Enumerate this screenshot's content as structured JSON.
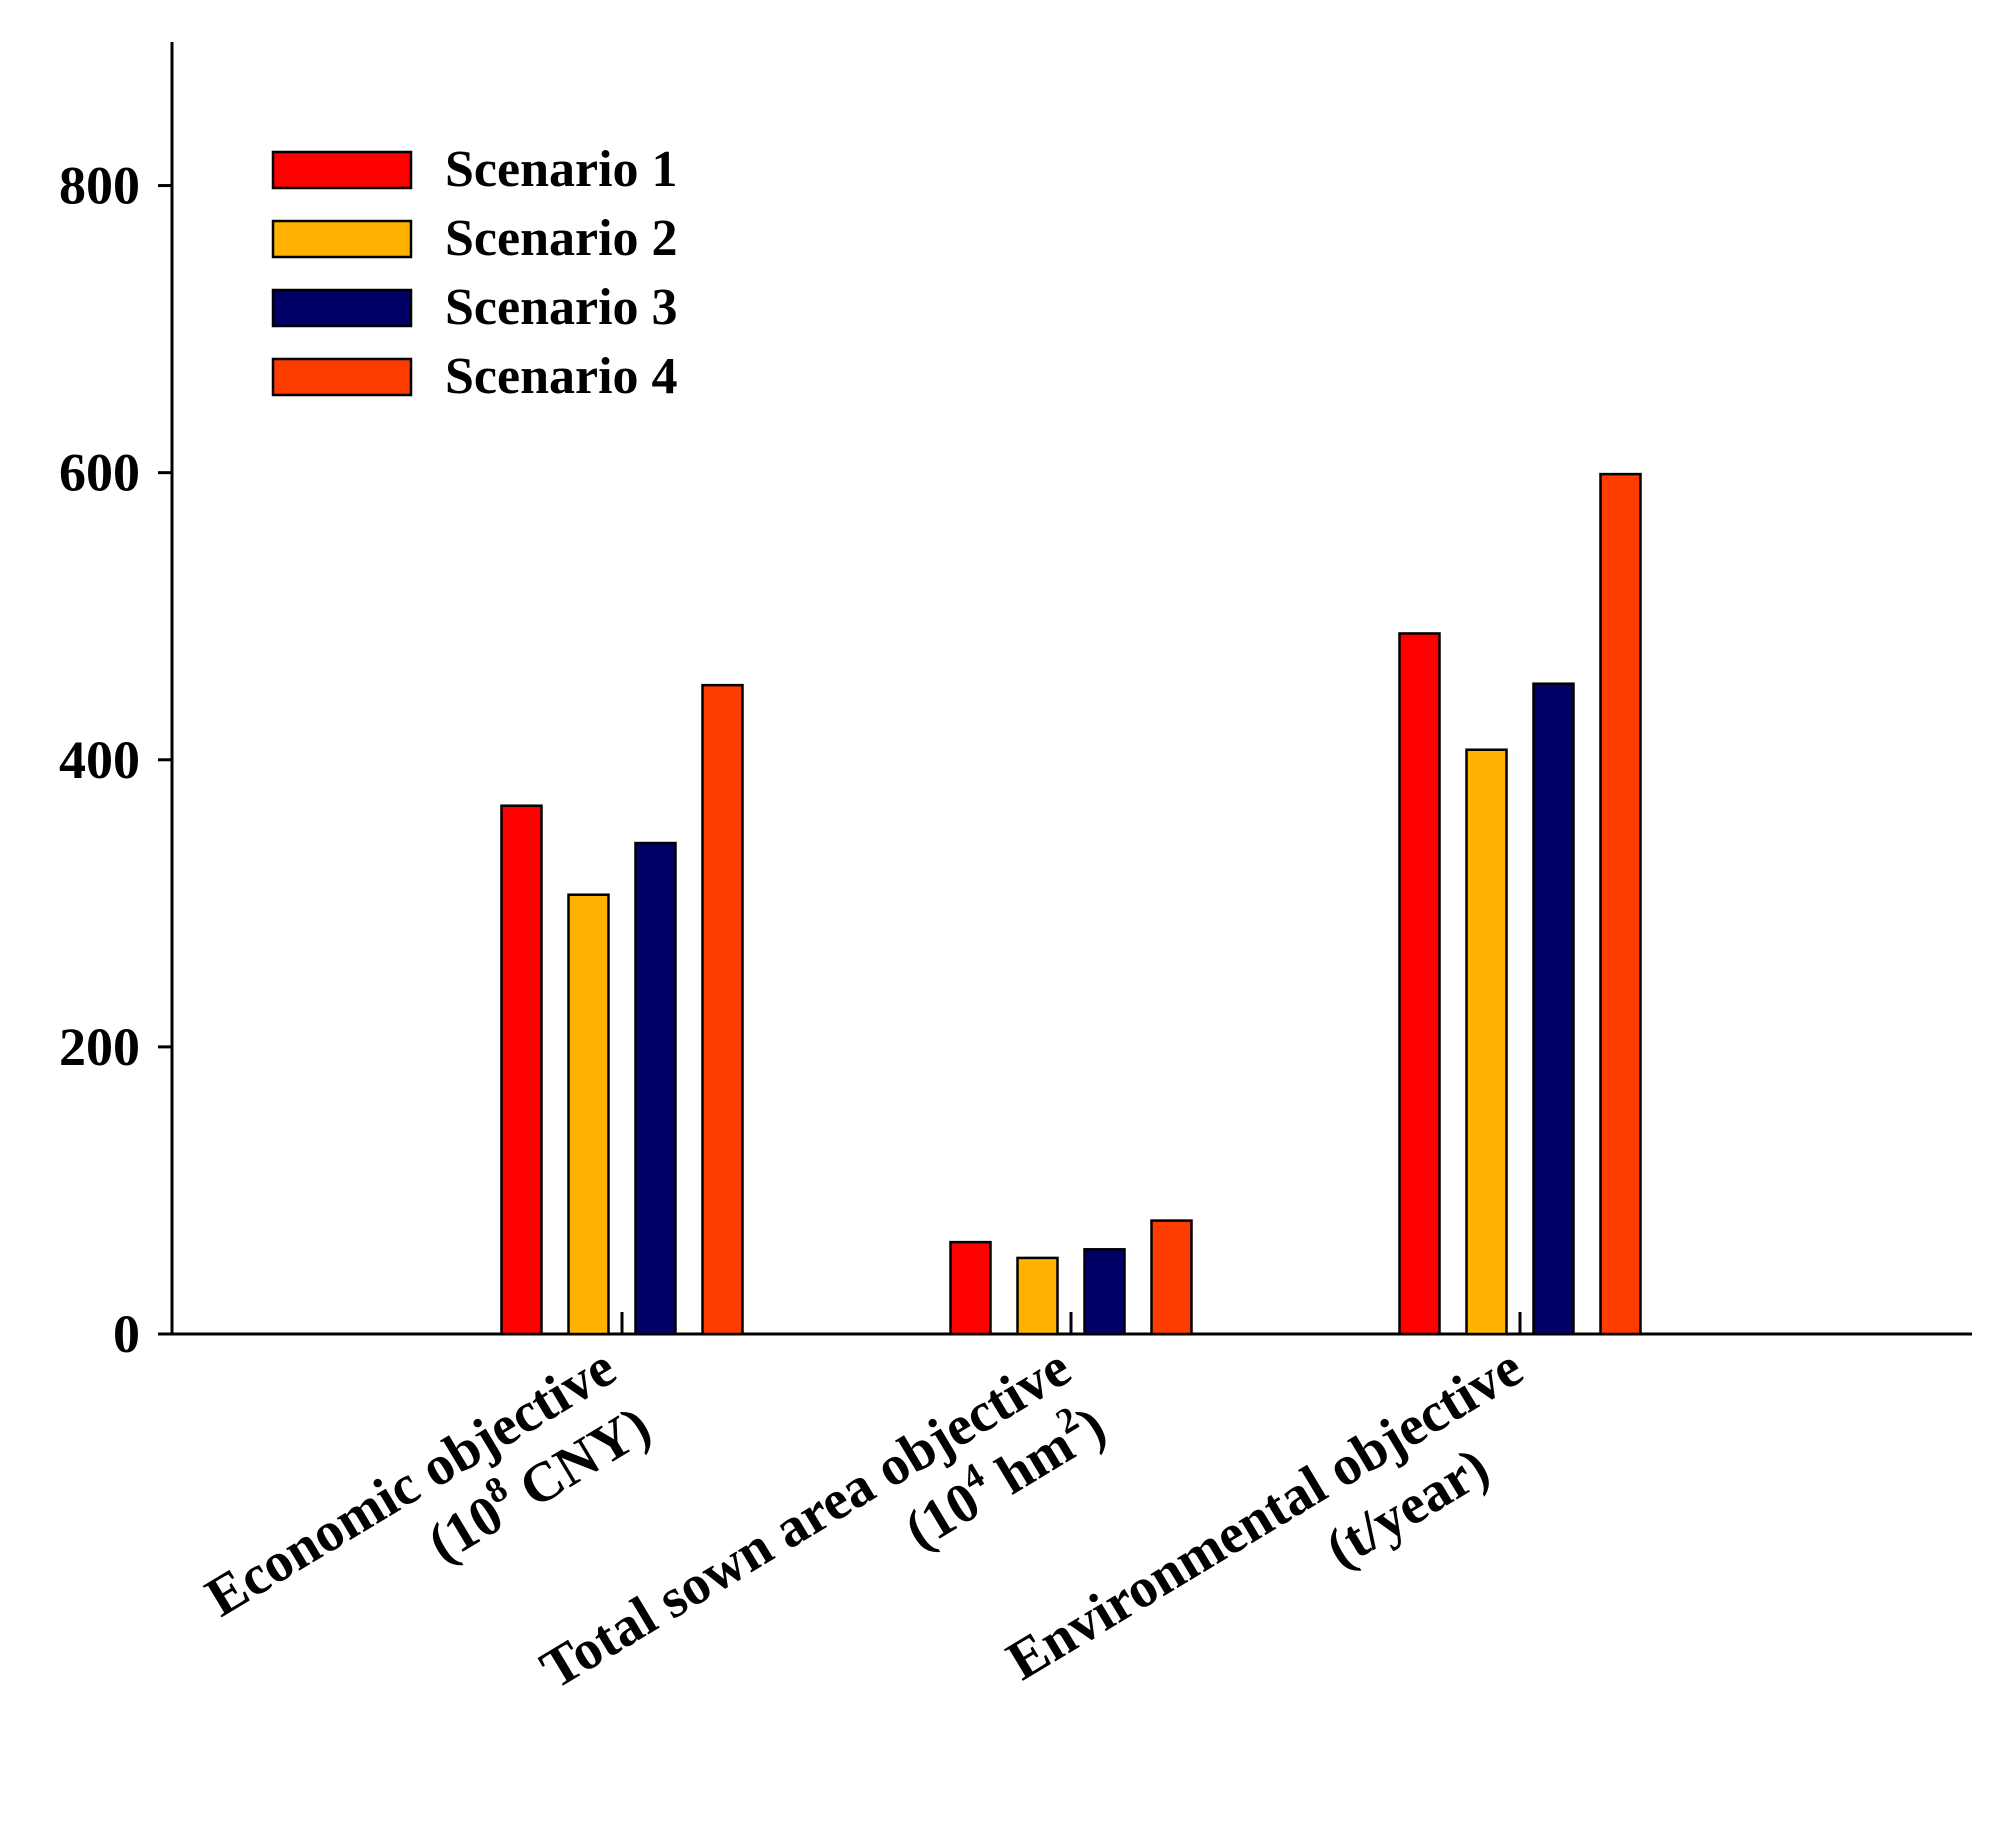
{
  "chart_data": {
    "type": "bar",
    "title": "",
    "xlabel": "",
    "ylabel": "",
    "ylim": [
      0,
      900
    ],
    "yticks": [
      0,
      200,
      400,
      600,
      800
    ],
    "grid": false,
    "legend_position": "top-left",
    "categories": [
      {
        "line1": "Economic objective",
        "line2_pre": "(10",
        "line2_sup": "8",
        "line2_post": " CNY)"
      },
      {
        "line1": "Total sown area objective",
        "line2_pre": "(10",
        "line2_sup": "4",
        "line2_mid": " hm",
        "line2_sup2": "2",
        "line2_post": ")"
      },
      {
        "line1": "Environmental objective",
        "line2_pre": "(t/year)"
      }
    ],
    "series": [
      {
        "name": "Scenario 1",
        "color": "#ff0000",
        "values": [
          368,
          64,
          488
        ]
      },
      {
        "name": "Scenario 2",
        "color": "#ffb300",
        "values": [
          306,
          53,
          407
        ]
      },
      {
        "name": "Scenario 3",
        "color": "#000066",
        "values": [
          342,
          59,
          453
        ]
      },
      {
        "name": "Scenario 4",
        "color": "#ff3c00",
        "values": [
          452,
          79,
          599
        ]
      }
    ]
  }
}
